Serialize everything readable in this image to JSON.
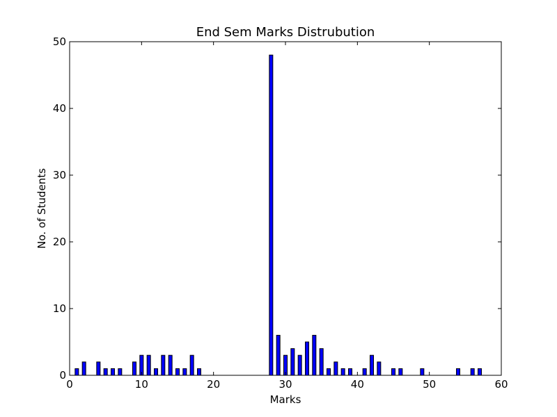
{
  "chart_data": {
    "type": "bar",
    "title": "End Sem Marks Distrubution",
    "xlabel": "Marks",
    "ylabel": "No. of Students",
    "xlim": [
      0,
      60
    ],
    "ylim": [
      0,
      50
    ],
    "xticks": [
      "0",
      "10",
      "20",
      "30",
      "40",
      "50",
      "60"
    ],
    "yticks": [
      "0",
      "10",
      "20",
      "30",
      "40",
      "50"
    ],
    "bar_color": "#0000ff",
    "grid": false,
    "legend": "none",
    "x": [
      1,
      2,
      3,
      4,
      5,
      6,
      7,
      8,
      9,
      10,
      11,
      12,
      13,
      14,
      15,
      16,
      17,
      18,
      19,
      20,
      21,
      22,
      23,
      24,
      25,
      26,
      27,
      28,
      29,
      30,
      31,
      32,
      33,
      34,
      35,
      36,
      37,
      38,
      39,
      40,
      41,
      42,
      43,
      44,
      45,
      46,
      47,
      48,
      49,
      50,
      51,
      52,
      53,
      54,
      55,
      56,
      57
    ],
    "values": [
      1,
      2,
      0,
      2,
      1,
      1,
      1,
      0,
      2,
      3,
      3,
      1,
      3,
      3,
      1,
      1,
      3,
      1,
      0,
      0,
      0,
      0,
      0,
      0,
      0,
      0,
      0,
      48,
      6,
      3,
      4,
      3,
      5,
      6,
      4,
      1,
      2,
      1,
      1,
      0,
      1,
      3,
      2,
      0,
      1,
      1,
      0,
      0,
      1,
      0,
      0,
      0,
      0,
      1,
      0,
      1,
      1
    ]
  }
}
